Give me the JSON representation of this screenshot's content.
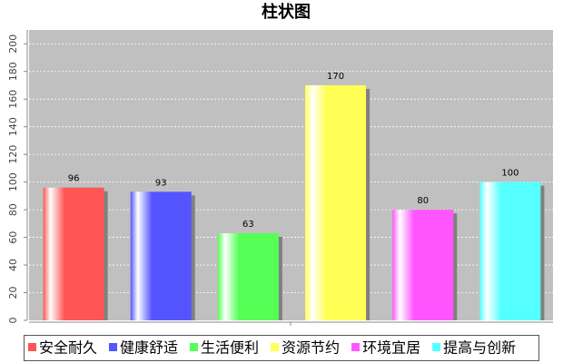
{
  "chart_data": {
    "type": "bar",
    "title": "柱状图",
    "categories": [
      "安全耐久",
      "健康舒适",
      "生活便利",
      "资源节约",
      "环境宜居",
      "提高与创新"
    ],
    "values": [
      96,
      93,
      63,
      170,
      80,
      100
    ],
    "colors": [
      "#ff5555",
      "#5555ff",
      "#55ff55",
      "#ffff55",
      "#ff55ff",
      "#55ffff"
    ],
    "ylim": [
      0,
      210
    ],
    "yticks": [
      0,
      20,
      40,
      60,
      80,
      100,
      120,
      140,
      160,
      180,
      200
    ],
    "grid": true
  }
}
